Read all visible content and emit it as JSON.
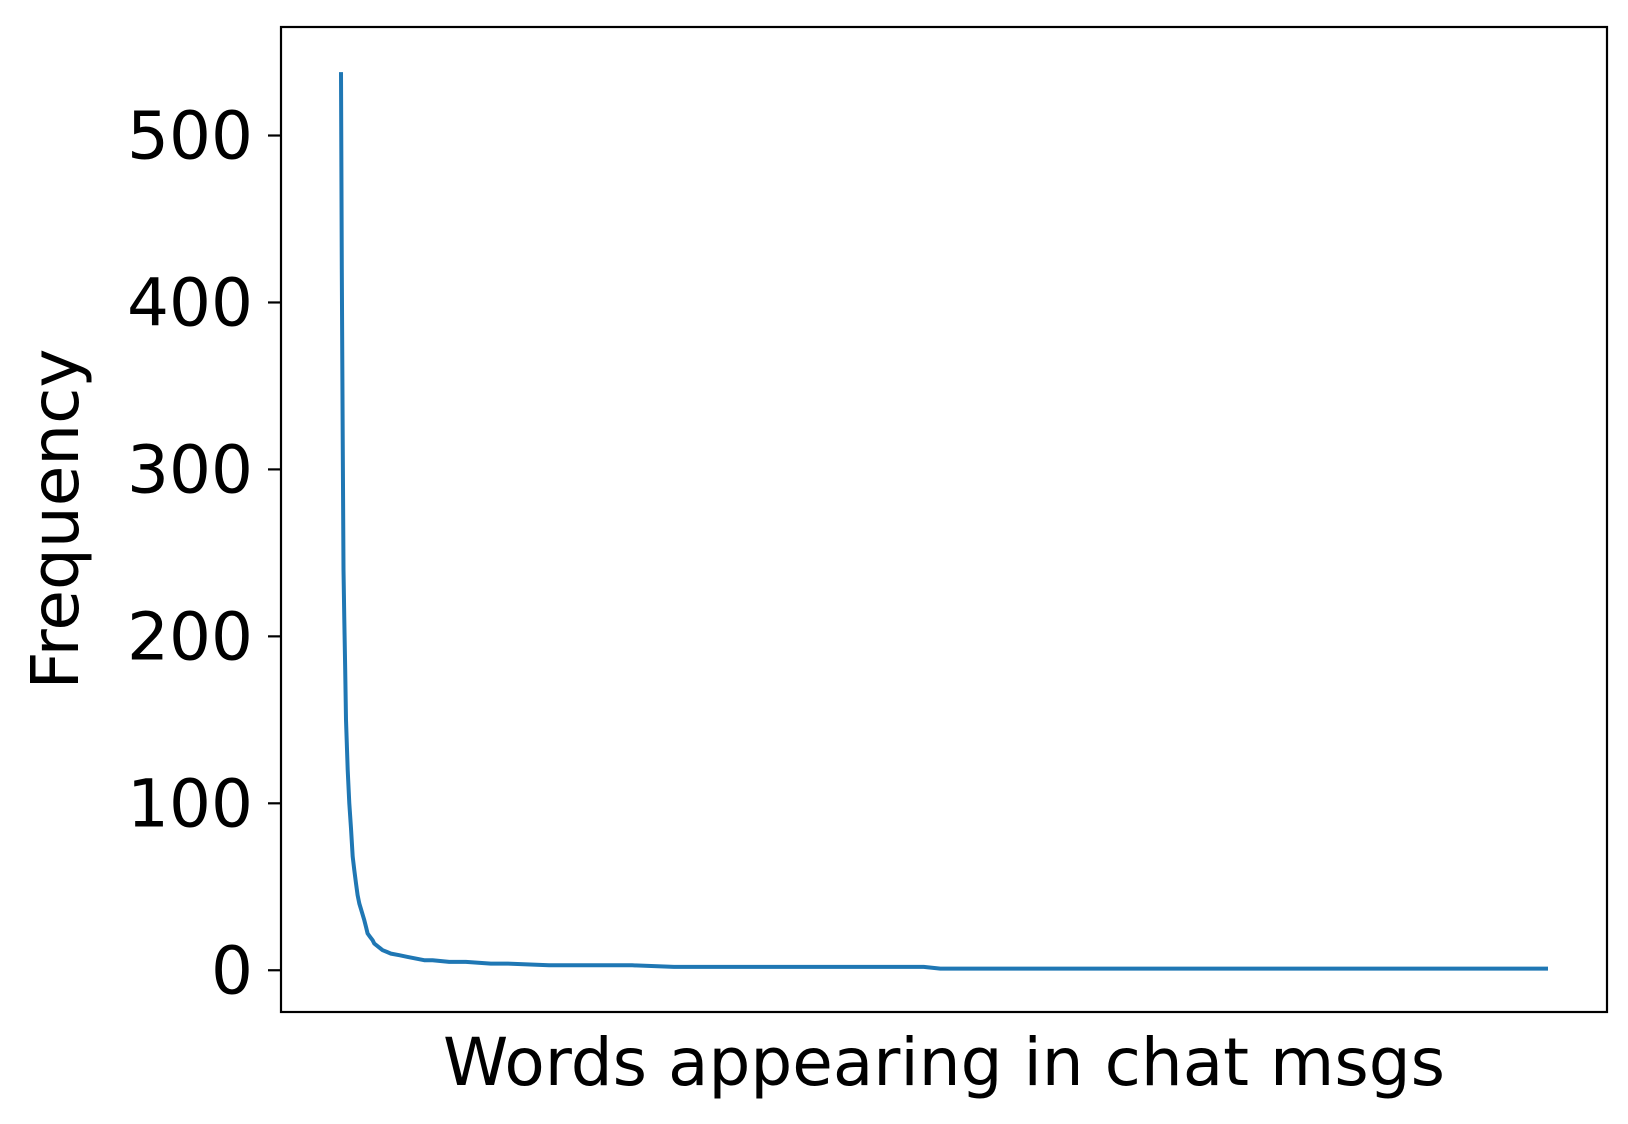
{
  "chart_data": {
    "type": "line",
    "title": "",
    "xlabel": "Words appearing in chat msgs",
    "ylabel": "Frequency",
    "x_ticks_visible": false,
    "ylim": [
      -25,
      565
    ],
    "yticks": [
      0,
      100,
      200,
      300,
      400,
      500
    ],
    "ytick_labels": [
      "0",
      "100",
      "200",
      "300",
      "400",
      "500"
    ],
    "grid": false,
    "legend": "none",
    "line_color": "#1f77b4",
    "series": [
      {
        "x": [
          0,
          1,
          2,
          3,
          4,
          5,
          6,
          8,
          10,
          12,
          14,
          16,
          18,
          20,
          22,
          25,
          28,
          30,
          32,
          35,
          38,
          40,
          45,
          50,
          55,
          60,
          70,
          80,
          90,
          100,
          110,
          130,
          150,
          180,
          200,
          250,
          300,
          350,
          400,
          450,
          500,
          600,
          700,
          720,
          800,
          900,
          1000,
          1100,
          1200,
          1300,
          1450
        ],
        "y": [
          538,
          420,
          320,
          240,
          210,
          180,
          150,
          120,
          100,
          85,
          68,
          60,
          52,
          45,
          40,
          35,
          30,
          26,
          22,
          20,
          18,
          16,
          14,
          12,
          11,
          10,
          9,
          8,
          7,
          6,
          6,
          5,
          5,
          4,
          4,
          3,
          3,
          3,
          2,
          2,
          2,
          2,
          2,
          1,
          1,
          1,
          1,
          1,
          1,
          1,
          1
        ]
      }
    ]
  }
}
